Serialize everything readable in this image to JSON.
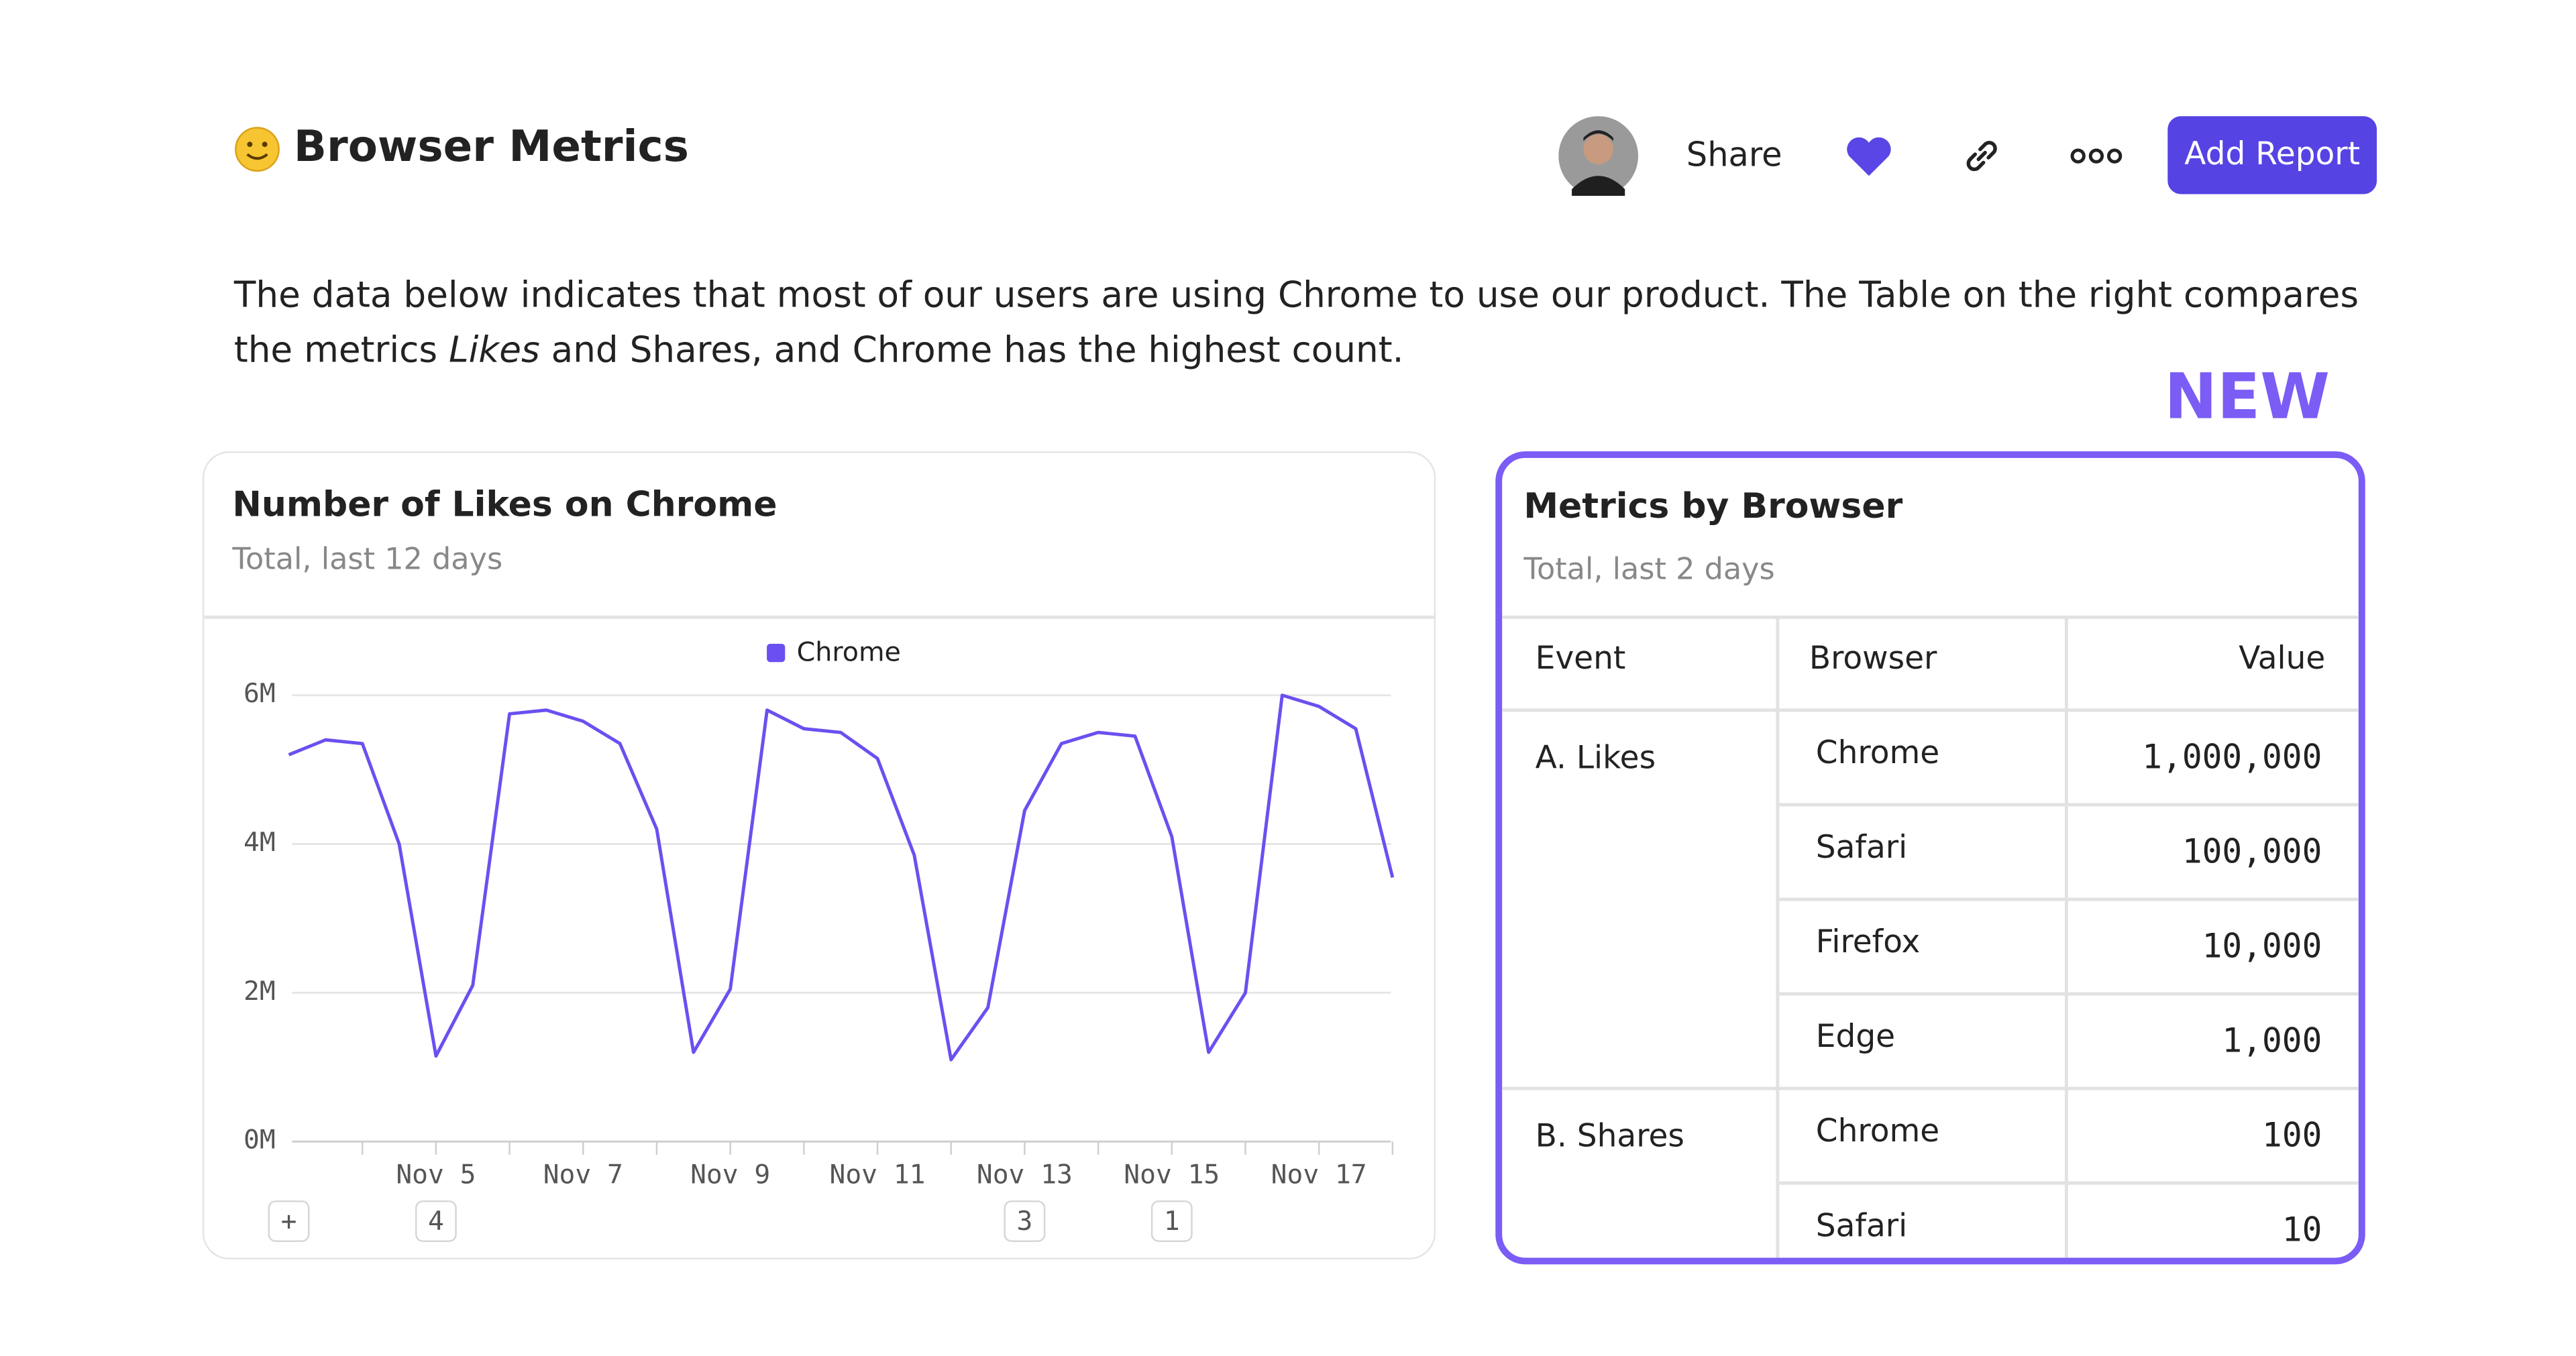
{
  "header": {
    "title": "Browser Metrics",
    "share": "Share",
    "add_report": "Add Report"
  },
  "description": {
    "before": "The data below indicates that most of our users are using Chrome to use our product. The Table on the right compares the metrics ",
    "emphasis": "Likes",
    "after": " and Shares, and Chrome has the highest count."
  },
  "badge": "NEW",
  "chart_data": {
    "type": "line",
    "title": "Number of Likes on Chrome",
    "subtitle": "Total, last 12 days",
    "categories": [
      null,
      null,
      null,
      null,
      "Nov 5",
      null,
      null,
      null,
      "Nov 7",
      null,
      null,
      null,
      "Nov 9",
      null,
      null,
      null,
      "Nov 11",
      null,
      null,
      null,
      "Nov 13",
      null,
      null,
      null,
      "Nov 15",
      null,
      null,
      null,
      "Nov 17",
      null,
      null
    ],
    "annotations": [
      "+",
      null,
      null,
      null,
      "4",
      null,
      null,
      null,
      null,
      null,
      null,
      null,
      null,
      null,
      null,
      null,
      null,
      null,
      null,
      null,
      "3",
      null,
      null,
      null,
      "1",
      null,
      null,
      null,
      null,
      null,
      null
    ],
    "series": [
      {
        "name": "Chrome",
        "color": "#6c4ff0",
        "values": [
          5.2,
          5.4,
          5.35,
          4.0,
          1.15,
          2.1,
          5.75,
          5.8,
          5.65,
          5.35,
          4.2,
          1.2,
          2.05,
          5.8,
          5.55,
          5.5,
          5.15,
          3.85,
          1.1,
          1.8,
          4.45,
          5.35,
          5.5,
          5.45,
          4.1,
          1.2,
          2.0,
          6.0,
          5.85,
          5.55,
          3.55
        ]
      }
    ],
    "ylim": [
      0,
      6
    ],
    "yticks": [
      {
        "value": 0,
        "label": "0M"
      },
      {
        "value": 2,
        "label": "2M"
      },
      {
        "value": 4,
        "label": "4M"
      },
      {
        "value": 6,
        "label": "6M"
      }
    ],
    "grid": true,
    "legend": "top"
  },
  "table": {
    "title": "Metrics by Browser",
    "subtitle": "Total, last 2 days",
    "columns": [
      "Event",
      "Browser",
      "Value"
    ],
    "groups": [
      {
        "event": "A. Likes",
        "rows": [
          [
            "Chrome",
            "1,000,000"
          ],
          [
            "Safari",
            "100,000"
          ],
          [
            "Firefox",
            "10,000"
          ],
          [
            "Edge",
            "1,000"
          ]
        ]
      },
      {
        "event": "B. Shares",
        "rows": [
          [
            "Chrome",
            "100"
          ],
          [
            "Safari",
            "10"
          ]
        ]
      }
    ]
  }
}
